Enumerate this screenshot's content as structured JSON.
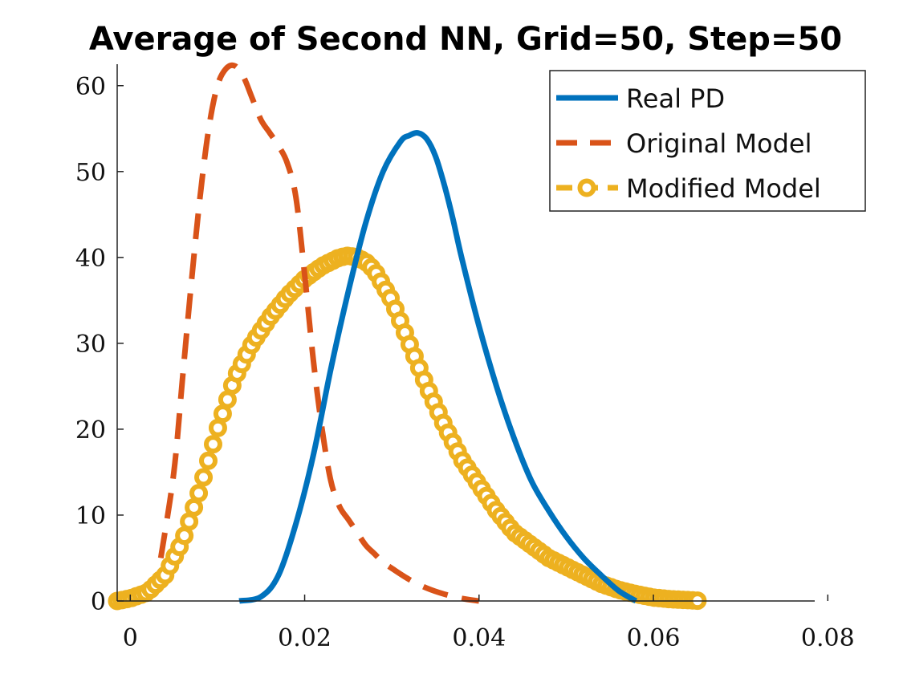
{
  "chart_data": {
    "type": "line",
    "title": "Average of Second NN, Grid=50, Step=50",
    "xlabel": "",
    "ylabel": "",
    "xlim": [
      -0.0015,
      0.0785
    ],
    "ylim": [
      0,
      62.5
    ],
    "xticks": [
      0,
      0.02,
      0.04,
      0.06,
      0.08
    ],
    "xtick_labels": [
      "0",
      "0.02",
      "0.04",
      "0.06",
      "0.08"
    ],
    "yticks": [
      0,
      10,
      20,
      30,
      40,
      50,
      60
    ],
    "ytick_labels": [
      "0",
      "10",
      "20",
      "30",
      "40",
      "50",
      "60"
    ],
    "grid": false,
    "legend_position": "top-right",
    "series": [
      {
        "name": "Real PD",
        "color": "#0072bd",
        "style": "solid",
        "marker": "none",
        "x": [
          0.0125,
          0.015,
          0.017,
          0.019,
          0.021,
          0.023,
          0.025,
          0.027,
          0.029,
          0.031,
          0.032,
          0.033,
          0.034,
          0.035,
          0.036,
          0.037,
          0.038,
          0.04,
          0.042,
          0.044,
          0.046,
          0.048,
          0.05,
          0.052,
          0.054,
          0.056,
          0.058
        ],
        "y": [
          0,
          0.5,
          3,
          9,
          17,
          27,
          36,
          44,
          50,
          53.5,
          54.2,
          54.5,
          53.8,
          51.8,
          48.5,
          44.5,
          40,
          32,
          25,
          19,
          14,
          10.5,
          7.5,
          5,
          3,
          1.2,
          0
        ]
      },
      {
        "name": "Original Model",
        "color": "#d95319",
        "style": "dashed",
        "marker": "none",
        "x": [
          0.0035,
          0.005,
          0.006,
          0.007,
          0.008,
          0.009,
          0.01,
          0.011,
          0.012,
          0.013,
          0.014,
          0.015,
          0.016,
          0.017,
          0.018,
          0.019,
          0.02,
          0.021,
          0.022,
          0.023,
          0.024,
          0.025,
          0.026,
          0.027,
          0.028,
          0.029,
          0.03,
          0.032,
          0.034,
          0.036,
          0.038,
          0.04
        ],
        "y": [
          5,
          15,
          26,
          37,
          47,
          55,
          60,
          62,
          62.3,
          61,
          58.5,
          56,
          54.5,
          53,
          51,
          47,
          38,
          28,
          20,
          14,
          11,
          9.5,
          8,
          6.5,
          5.5,
          4.5,
          3.8,
          2.5,
          1.5,
          0.8,
          0.3,
          0
        ]
      },
      {
        "name": "Modified Model",
        "color": "#edb120",
        "style": "dashed",
        "marker": "circle",
        "x": [
          -0.0015,
          0,
          0.002,
          0.004,
          0.006,
          0.008,
          0.01,
          0.012,
          0.014,
          0.016,
          0.018,
          0.02,
          0.022,
          0.024,
          0.025,
          0.026,
          0.027,
          0.028,
          0.03,
          0.032,
          0.034,
          0.036,
          0.038,
          0.04,
          0.042,
          0.044,
          0.046,
          0.048,
          0.05,
          0.052,
          0.054,
          0.056,
          0.058,
          0.06,
          0.062,
          0.064,
          0.0655
        ],
        "y": [
          0,
          0.3,
          1,
          3,
          7,
          13,
          20,
          26,
          30,
          33,
          35.5,
          37.5,
          39,
          40,
          40.2,
          40,
          39.5,
          38.5,
          35,
          30,
          25,
          20.5,
          16.5,
          13.5,
          10.5,
          8,
          6.5,
          5,
          4,
          3,
          2,
          1.3,
          0.8,
          0.4,
          0.2,
          0.1,
          0
        ]
      }
    ]
  }
}
